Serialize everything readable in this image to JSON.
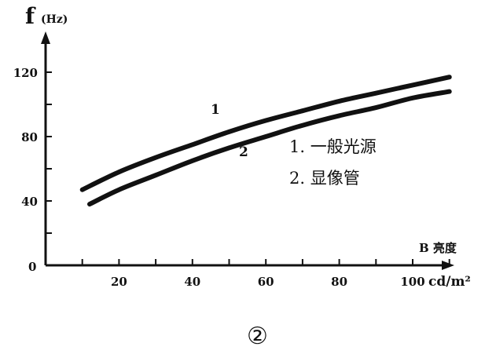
{
  "chart_data": {
    "type": "line",
    "ylabel_main": "f",
    "ylabel_unit": "(Hz)",
    "xlabel_main": "B 亮度",
    "xlabel_unit": "cd/m²",
    "origin_label": "0",
    "xlim": [
      0,
      110
    ],
    "ylim": [
      0,
      140
    ],
    "xticks": [
      10,
      20,
      30,
      40,
      50,
      60,
      70,
      80,
      90,
      100,
      110
    ],
    "xtick_labels": [
      {
        "x": 20,
        "label": "20"
      },
      {
        "x": 40,
        "label": "40"
      },
      {
        "x": 60,
        "label": "60"
      },
      {
        "x": 80,
        "label": "80"
      },
      {
        "x": 100,
        "label": "100"
      }
    ],
    "yticks": [
      20,
      40,
      60,
      80,
      100,
      120
    ],
    "ytick_labels": [
      {
        "y": 40,
        "label": "40"
      },
      {
        "y": 80,
        "label": "80"
      },
      {
        "y": 120,
        "label": "120"
      }
    ],
    "series": [
      {
        "name": "1",
        "x": [
          10,
          20,
          30,
          40,
          50,
          60,
          70,
          80,
          90,
          100,
          110
        ],
        "y": [
          47,
          58,
          67,
          75,
          83,
          90,
          96,
          102,
          107,
          112,
          117
        ]
      },
      {
        "name": "2",
        "x": [
          12,
          20,
          30,
          40,
          50,
          60,
          70,
          80,
          90,
          100,
          110
        ],
        "y": [
          38,
          47,
          56,
          65,
          73,
          80,
          87,
          93,
          98,
          104,
          108
        ]
      }
    ],
    "legend": [
      "1. 一般光源",
      "2. 显像管"
    ],
    "figure_label": "②",
    "grid": false
  }
}
